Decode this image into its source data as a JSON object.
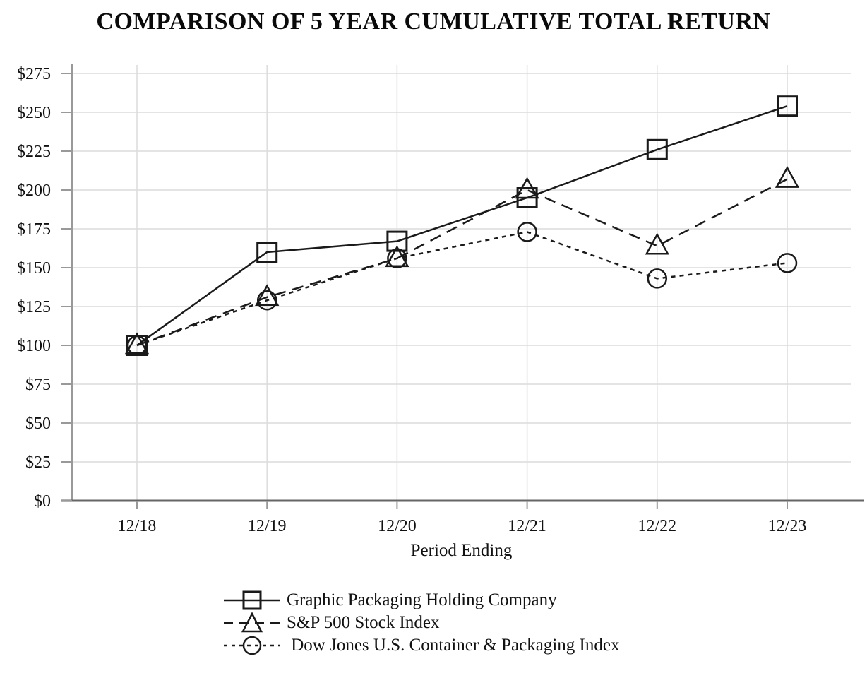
{
  "title": "COMPARISON OF 5 YEAR CUMULATIVE TOTAL RETURN",
  "chart_data": {
    "type": "line",
    "title": "COMPARISON OF 5 YEAR CUMULATIVE TOTAL RETURN",
    "xlabel": "Period Ending",
    "ylabel": "",
    "categories": [
      "12/18",
      "12/19",
      "12/20",
      "12/21",
      "12/22",
      "12/23"
    ],
    "series": [
      {
        "name": "Graphic Packaging Holding Company",
        "marker": "square",
        "line": "solid",
        "values": [
          100,
          160,
          167,
          195,
          226,
          254
        ]
      },
      {
        "name": "S&P 500 Stock Index",
        "marker": "triangle",
        "line": "long-dash",
        "values": [
          100,
          131,
          156,
          200,
          164,
          207
        ]
      },
      {
        "name": " Dow Jones U.S. Container & Packaging Index",
        "marker": "circle",
        "line": "short-dash",
        "values": [
          100,
          129,
          156,
          173,
          143,
          153
        ]
      }
    ],
    "y_ticks": [
      "$0",
      "$25",
      "$50",
      "$75",
      "$100",
      "$125",
      "$150",
      "$175",
      "$200",
      "$225",
      "$250",
      "$275"
    ],
    "y_step": 25,
    "ylim": [
      0,
      275
    ],
    "grid": true,
    "legend_position": "bottom",
    "colors": {
      "line": "#1a1a1a",
      "grid": "#dcdcdc",
      "axis_x": "#666666",
      "axis_y": "#999999",
      "tick": "#999999",
      "background": "#ffffff"
    }
  }
}
